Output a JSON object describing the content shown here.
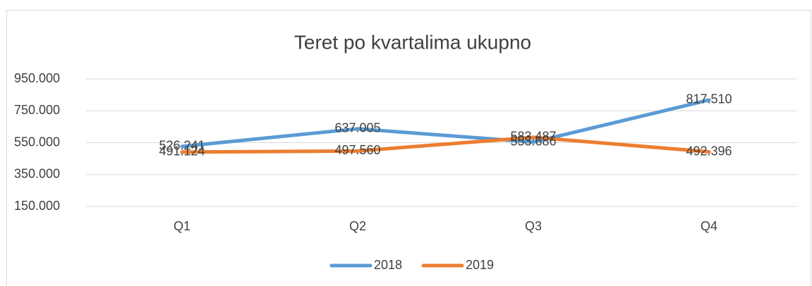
{
  "chart_data": {
    "type": "line",
    "title": "Teret po kvartalima ukupno",
    "categories": [
      "Q1",
      "Q2",
      "Q3",
      "Q4"
    ],
    "series": [
      {
        "name": "2018",
        "color": "#5b9bd5",
        "values": [
          526241,
          637005,
          553686,
          817510
        ],
        "value_labels": [
          "526.241",
          "637.005",
          "553.686",
          "817.510"
        ]
      },
      {
        "name": "2019",
        "color": "#ed7d31",
        "values": [
          491124,
          497560,
          583487,
          492396
        ],
        "value_labels": [
          "491.124",
          "497.560",
          "583.487",
          "492.396"
        ]
      }
    ],
    "ylim": [
      150000,
      950000
    ],
    "yticks": [
      {
        "value": 150000,
        "label": "150.000"
      },
      {
        "value": 350000,
        "label": "350.000"
      },
      {
        "value": 550000,
        "label": "550.000"
      },
      {
        "value": 750000,
        "label": "750.000"
      },
      {
        "value": 950000,
        "label": "950.000"
      }
    ],
    "grid": true,
    "legend": "bottom"
  }
}
